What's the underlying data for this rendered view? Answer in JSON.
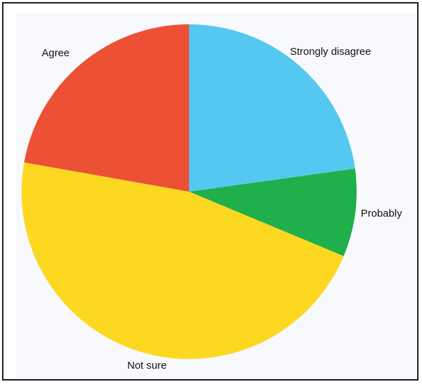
{
  "chart_data": {
    "type": "pie",
    "title": "",
    "slices": [
      {
        "label": "Strongly disagree",
        "value": 22.8,
        "color": "#55c8f2"
      },
      {
        "label": "Probably",
        "value": 8.5,
        "color": "#1fb04b"
      },
      {
        "label": "Not sure",
        "value": 46.5,
        "color": "#fcd821"
      },
      {
        "label": "Agree",
        "value": 22.2,
        "color": "#ec5035"
      }
    ],
    "start": "12 o'clock",
    "direction": "clockwise",
    "legend": "none",
    "labels_outside": true
  }
}
